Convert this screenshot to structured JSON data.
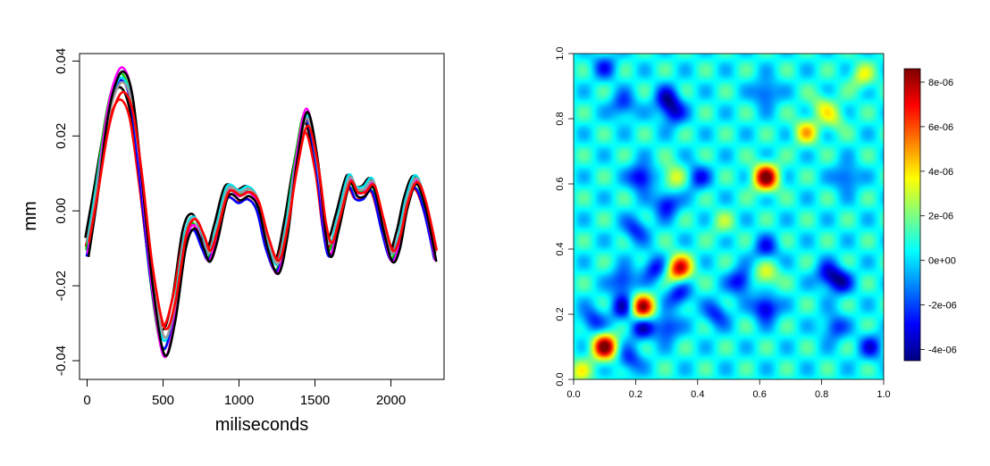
{
  "chart_data": [
    {
      "type": "line",
      "xlabel": "miliseconds",
      "ylabel": "mm",
      "xlim": [
        -50,
        2350
      ],
      "ylim": [
        -0.045,
        0.042
      ],
      "x_ticks": [
        0,
        500,
        1000,
        1500,
        2000
      ],
      "x_tick_labels": [
        "0",
        "500",
        "1000",
        "1500",
        "2000"
      ],
      "y_ticks": [
        -0.04,
        -0.02,
        0.0,
        0.02,
        0.04
      ],
      "y_tick_labels": [
        "-0.04",
        "-0.02",
        "0.00",
        "0.02",
        "0.04"
      ],
      "grid": false,
      "base_curve": {
        "x": [
          0,
          60,
          120,
          170,
          230,
          290,
          350,
          420,
          500,
          570,
          640,
          700,
          760,
          800,
          850,
          920,
          1000,
          1060,
          1120,
          1180,
          1250,
          1310,
          1370,
          1440,
          1510,
          1560,
          1600,
          1650,
          1720,
          1770,
          1820,
          1880,
          1940,
          2000,
          2050,
          2100,
          2160,
          2220,
          2290
        ],
        "y": [
          -0.01,
          0.005,
          0.022,
          0.031,
          0.035,
          0.029,
          0.01,
          -0.017,
          -0.035,
          -0.027,
          -0.008,
          -0.003,
          -0.008,
          -0.012,
          -0.006,
          0.005,
          0.004,
          0.005,
          0.002,
          -0.008,
          -0.015,
          -0.005,
          0.012,
          0.025,
          0.013,
          -0.004,
          -0.01,
          -0.003,
          0.008,
          0.005,
          0.005,
          0.007,
          -0.003,
          -0.012,
          -0.008,
          0.002,
          0.008,
          0.002,
          -0.012
        ]
      },
      "series": [
        {
          "color": "#000000",
          "amp": 0.92,
          "offset": 0.002
        },
        {
          "color": "#ff0000",
          "amp": 0.86,
          "offset": -0.001
        },
        {
          "color": "#00cc00",
          "amp": 1.05,
          "offset": 0.0
        },
        {
          "color": "#0000ff",
          "amp": 1.02,
          "offset": -0.002
        },
        {
          "color": "#00e5ee",
          "amp": 1.0,
          "offset": 0.0015
        },
        {
          "color": "#ff00ff",
          "amp": 1.1,
          "offset": -0.0005
        },
        {
          "color": "#999999",
          "amp": 0.97,
          "offset": 0.001
        },
        {
          "color": "#000000",
          "amp": 1.08,
          "offset": -0.0015
        },
        {
          "color": "#ff0000",
          "amp": 0.9,
          "offset": 0.0005
        }
      ]
    },
    {
      "type": "heatmap",
      "xlim": [
        0,
        1
      ],
      "ylim": [
        0,
        1
      ],
      "x_ticks": [
        0.0,
        0.2,
        0.4,
        0.6,
        0.8,
        1.0
      ],
      "x_tick_labels": [
        "0.0",
        "0.2",
        "0.4",
        "0.6",
        "0.8",
        "1.0"
      ],
      "y_ticks": [
        0.0,
        0.2,
        0.4,
        0.6,
        0.8,
        1.0
      ],
      "y_tick_labels": [
        "0.0",
        "0.2",
        "0.4",
        "0.6",
        "0.8",
        "1.0"
      ],
      "colorbar": {
        "values": [
          -4e-06,
          -2e-06,
          0,
          2e-06,
          4e-06,
          6e-06,
          8e-06
        ],
        "labels": [
          "-4e-06",
          "-2e-06",
          "0e+00",
          "2e-06",
          "4e-06",
          "6e-06",
          "8e-06"
        ],
        "range": [
          -4.5e-06,
          8.6e-06
        ]
      },
      "colormap": [
        "#00007f",
        "#0000ff",
        "#007fff",
        "#00ffff",
        "#7fff7f",
        "#ffff00",
        "#ff7f00",
        "#ff0000",
        "#7f0000"
      ],
      "baseline": 5e-07,
      "blobs": [
        {
          "x": 0.1,
          "y": 0.1,
          "value": 8.5e-06
        },
        {
          "x": 0.22,
          "y": 0.22,
          "value": 8.3e-06
        },
        {
          "x": 0.34,
          "y": 0.34,
          "value": 7.5e-06
        },
        {
          "x": 0.62,
          "y": 0.62,
          "value": 8.6e-06
        },
        {
          "x": 0.75,
          "y": 0.76,
          "value": 4e-06
        },
        {
          "x": 0.93,
          "y": 0.93,
          "value": 3e-06
        },
        {
          "x": 0.32,
          "y": 0.62,
          "value": 3.5e-06
        },
        {
          "x": 0.62,
          "y": 0.32,
          "value": 3.5e-06
        },
        {
          "x": 0.22,
          "y": 0.62,
          "value": -4e-06
        },
        {
          "x": 0.62,
          "y": 0.22,
          "value": -4.2e-06
        },
        {
          "x": 0.16,
          "y": 0.22,
          "value": -3.5e-06
        },
        {
          "x": 0.22,
          "y": 0.16,
          "value": -3.5e-06
        },
        {
          "x": 0.3,
          "y": 0.16,
          "value": -3e-06
        },
        {
          "x": 0.16,
          "y": 0.3,
          "value": -3e-06
        },
        {
          "x": 0.26,
          "y": 0.34,
          "value": -3e-06
        },
        {
          "x": 0.34,
          "y": 0.26,
          "value": -3e-06
        },
        {
          "x": 0.32,
          "y": 0.82,
          "value": -3e-06
        },
        {
          "x": 0.82,
          "y": 0.32,
          "value": -3e-06
        },
        {
          "x": 0.54,
          "y": 0.3,
          "value": -3.5e-06
        },
        {
          "x": 0.3,
          "y": 0.54,
          "value": -3.5e-06
        },
        {
          "x": 0.06,
          "y": 0.18,
          "value": -2.5e-06
        },
        {
          "x": 0.18,
          "y": 0.06,
          "value": -2.5e-06
        },
        {
          "x": 0.16,
          "y": 0.84,
          "value": -2.5e-06
        },
        {
          "x": 0.84,
          "y": 0.16,
          "value": -2.5e-06
        },
        {
          "x": 0.86,
          "y": 0.3,
          "value": -3e-06
        },
        {
          "x": 0.3,
          "y": 0.86,
          "value": -3e-06
        },
        {
          "x": 0.4,
          "y": 0.62,
          "value": -2.5e-06
        },
        {
          "x": 0.62,
          "y": 0.4,
          "value": -2.5e-06
        },
        {
          "x": 0.48,
          "y": 0.48,
          "value": 2e-06
        },
        {
          "x": 0.88,
          "y": 0.62,
          "value": -2.5e-06
        },
        {
          "x": 0.62,
          "y": 0.88,
          "value": -2.5e-06
        },
        {
          "x": 0.96,
          "y": 0.1,
          "value": -2.5e-06
        },
        {
          "x": 0.1,
          "y": 0.96,
          "value": -2e-06
        },
        {
          "x": 0.46,
          "y": 0.2,
          "value": -2.5e-06
        },
        {
          "x": 0.2,
          "y": 0.46,
          "value": -2.5e-06
        },
        {
          "x": 0.8,
          "y": 0.84,
          "value": 2.5e-06
        },
        {
          "x": 0.84,
          "y": 0.8,
          "value": 2.5e-06
        },
        {
          "x": 0.02,
          "y": 0.02,
          "value": 3e-06
        }
      ]
    }
  ]
}
